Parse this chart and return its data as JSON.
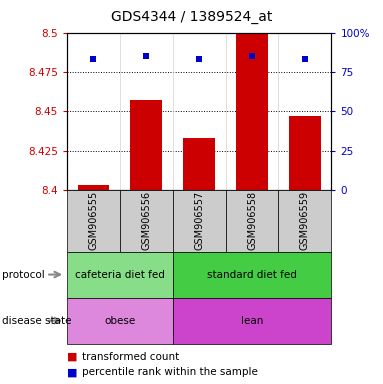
{
  "title": "GDS4344 / 1389524_at",
  "samples": [
    "GSM906555",
    "GSM906556",
    "GSM906557",
    "GSM906558",
    "GSM906559"
  ],
  "bar_values": [
    8.403,
    8.457,
    8.433,
    8.5,
    8.447
  ],
  "percentile_values": [
    83,
    85,
    83,
    85,
    83
  ],
  "y_min": 8.4,
  "y_max": 8.5,
  "y_ticks": [
    8.4,
    8.425,
    8.45,
    8.475,
    8.5
  ],
  "y_tick_labels": [
    "8.4",
    "8.425",
    "8.45",
    "8.475",
    "8.5"
  ],
  "y2_ticks": [
    0,
    25,
    50,
    75,
    100
  ],
  "y2_tick_labels": [
    "0",
    "25",
    "50",
    "75",
    "100%"
  ],
  "bar_color": "#cc0000",
  "percentile_color": "#0000cc",
  "protocol_labels": [
    [
      "cafeteria diet fed",
      0,
      2
    ],
    [
      "standard diet fed",
      2,
      5
    ]
  ],
  "protocol_colors": [
    "#88dd88",
    "#44cc44"
  ],
  "disease_labels": [
    [
      "obese",
      0,
      2
    ],
    [
      "lean",
      2,
      5
    ]
  ],
  "disease_colors": [
    "#dd88dd",
    "#cc44cc"
  ],
  "protocol_row_label": "protocol",
  "disease_row_label": "disease state",
  "legend_red_label": "transformed count",
  "legend_blue_label": "percentile rank within the sample",
  "tick_color_left": "#cc0000",
  "tick_color_right": "#0000cc",
  "sample_bg_color": "#cccccc"
}
